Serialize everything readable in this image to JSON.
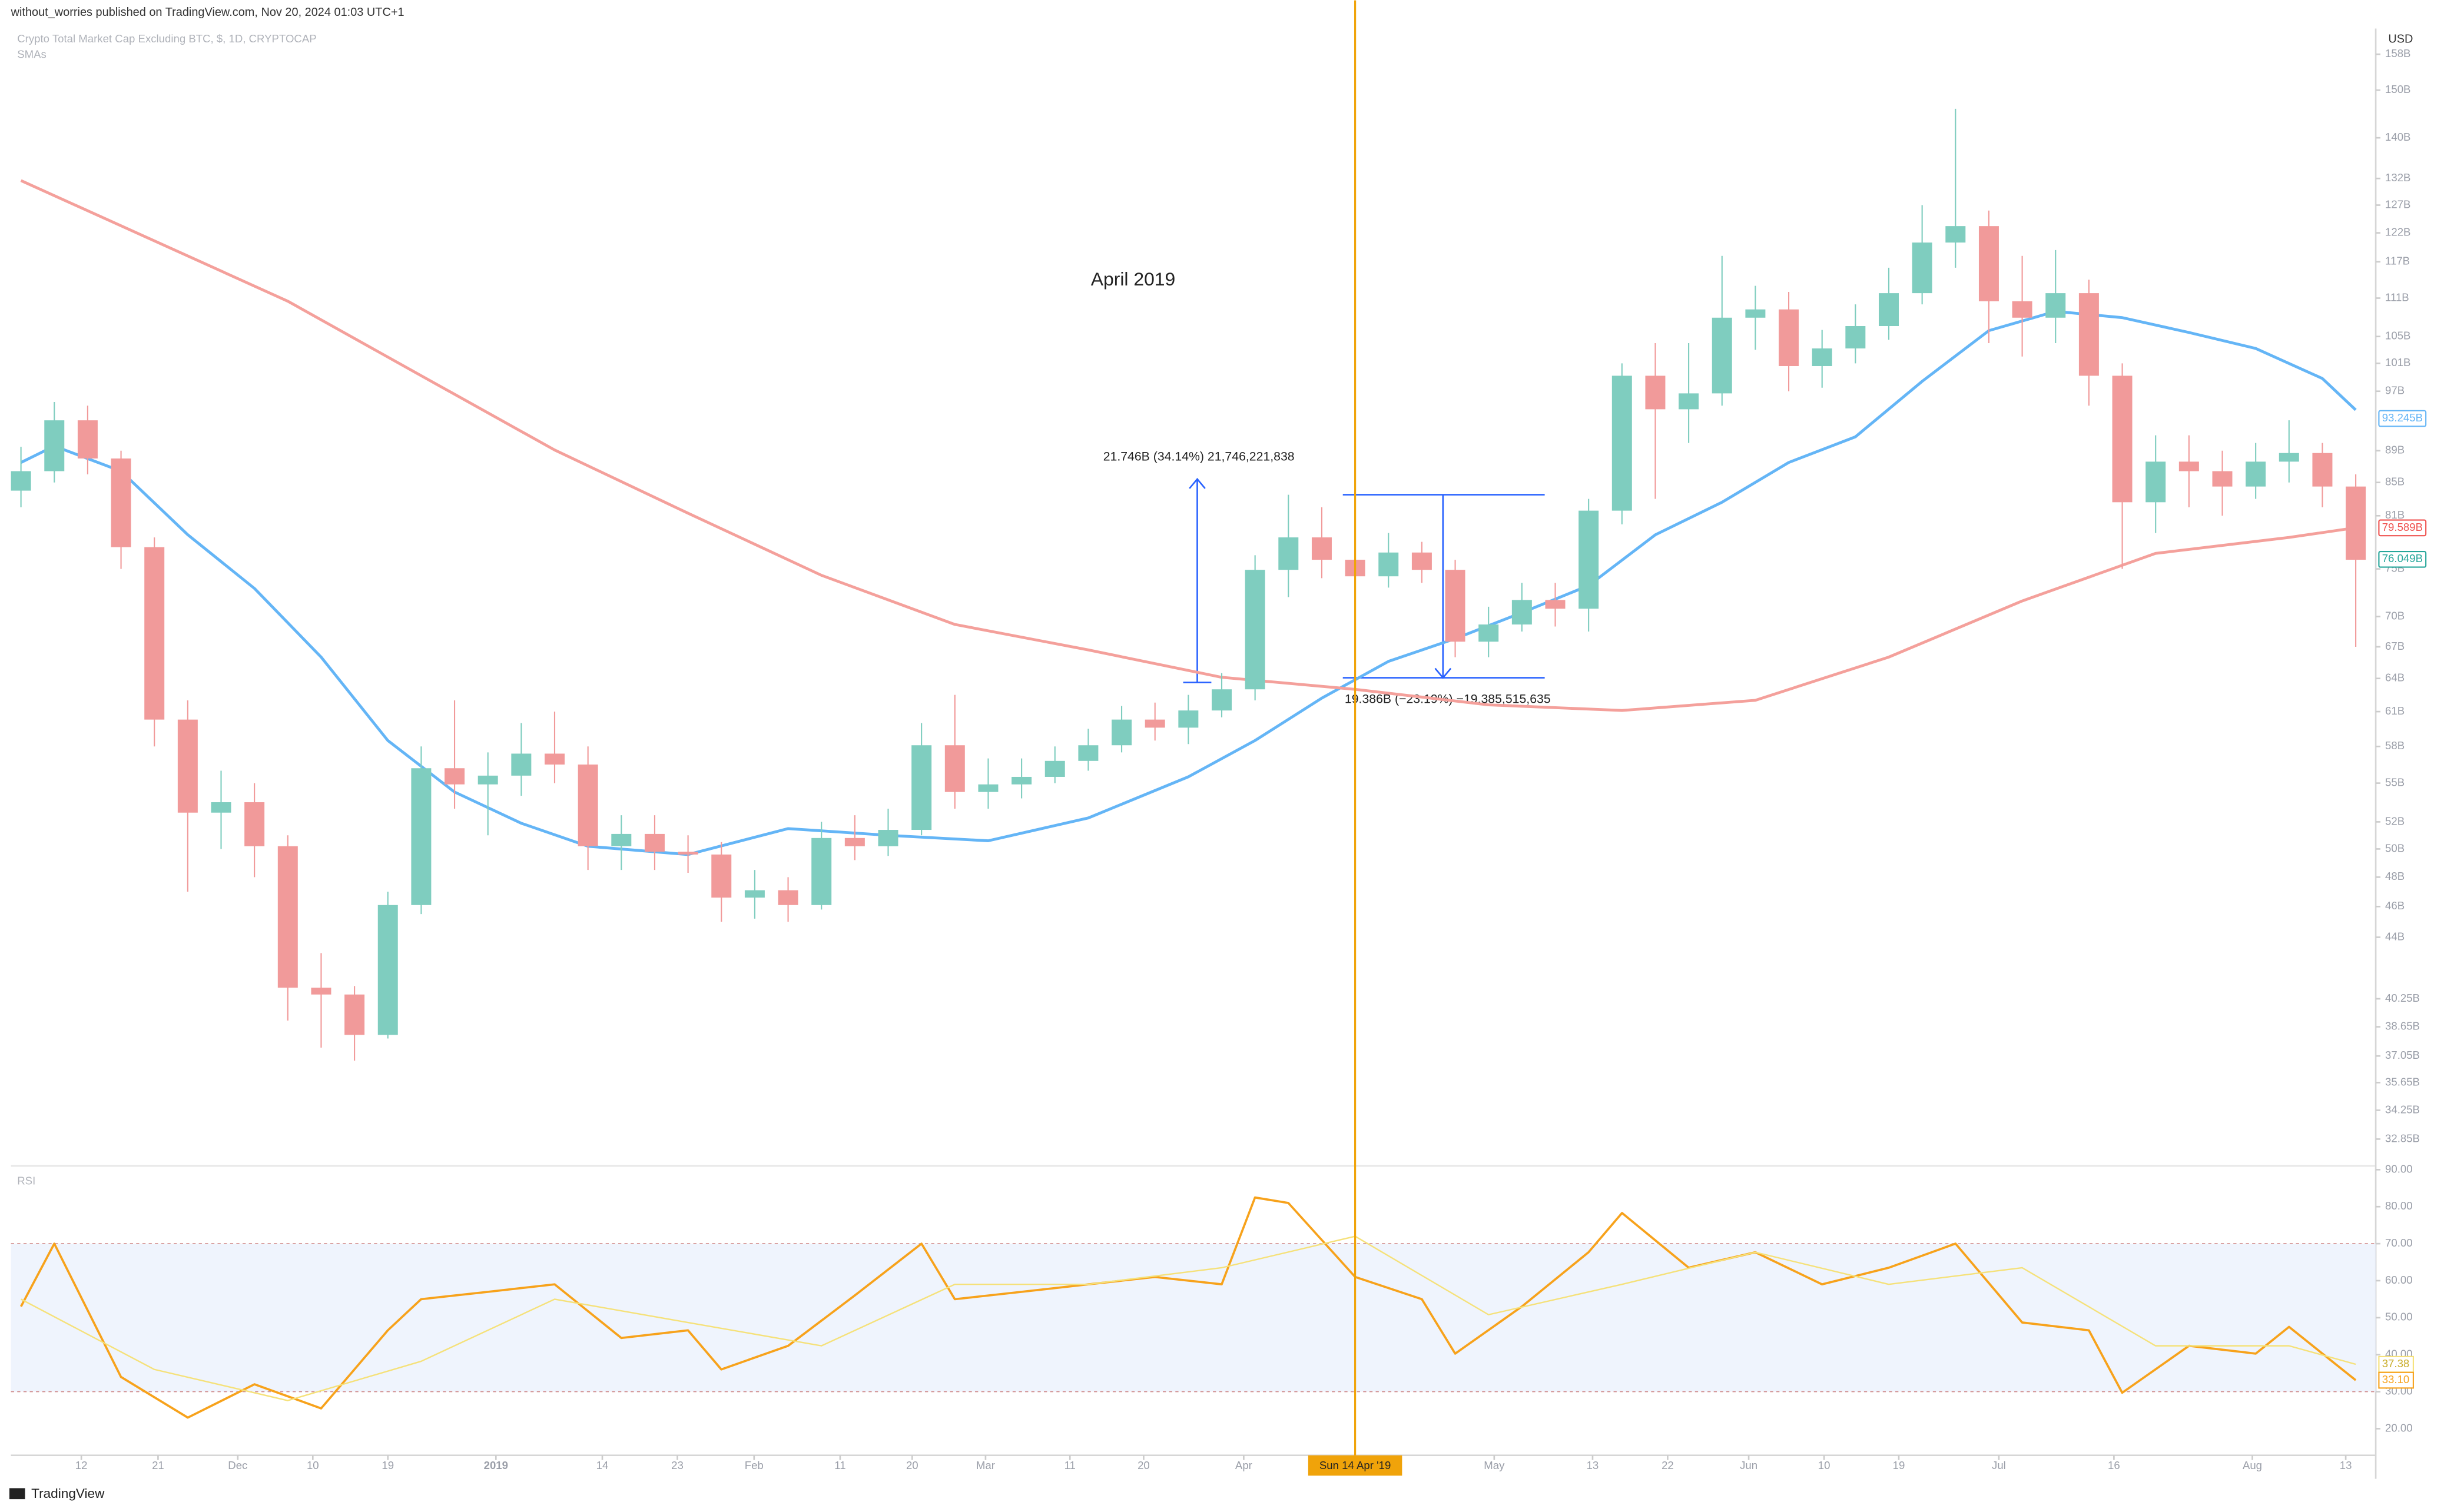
{
  "header": {
    "publisher": "without_worries published on TradingView.com, Nov 20, 2024 01:03 UTC+1",
    "footer": "TradingView"
  },
  "chart_data": [
    {
      "type": "candlestick",
      "title": "Crypto Total Market Cap Excluding BTC, $, 1D, CRYPTOCAP",
      "subtitle": "SMAs",
      "currency": "USD",
      "log_scale": true,
      "up_color": "#7fcdbf",
      "down_color": "#f19a9a",
      "open": [
        84,
        86.4,
        93,
        88,
        77.4,
        60.3,
        52.7,
        53.5,
        50.2,
        40.9,
        40.5,
        38.2,
        46.1,
        56.2,
        54.9,
        55.6,
        57.4,
        56.5,
        50.2,
        51.1,
        49.8,
        49.6,
        46.6,
        47.1,
        46.1,
        50.8,
        50.2,
        51.4,
        58.1,
        54.3,
        54.9,
        55.5,
        56.8,
        58.1,
        60.3,
        59.6,
        61.1,
        63.0,
        74.9,
        78.5,
        76.0,
        74.2,
        76.8,
        74.9,
        67.5,
        69.2,
        71.7,
        70.8,
        81.6,
        99.2,
        94.5,
        96.7,
        107.9,
        109.2,
        100.6,
        103.2,
        106.6,
        111.8,
        120.3,
        123.2,
        110.5,
        107.9,
        111.8,
        99.2,
        82.6,
        87.6,
        86.4,
        84.5,
        87.6,
        88.7,
        84.5
      ],
      "high": [
        89.5,
        95.5,
        95,
        89,
        78.5,
        62,
        56,
        55,
        51,
        43,
        41,
        47,
        58,
        62,
        57.5,
        60,
        61,
        58,
        52.5,
        52.5,
        51,
        50.5,
        48.5,
        48,
        52,
        52.5,
        53,
        60,
        62.5,
        57,
        57,
        58,
        59.5,
        61.5,
        61.8,
        62.5,
        64.5,
        76.5,
        83.5,
        82,
        79,
        79,
        78,
        76,
        71,
        73.5,
        73.5,
        83,
        101,
        104,
        104,
        118,
        113,
        112,
        106,
        110,
        116,
        127,
        146,
        126,
        118,
        119,
        114,
        101,
        91,
        91,
        89,
        90,
        93,
        90,
        86
      ],
      "low": [
        82,
        85,
        86,
        75,
        58,
        47,
        50,
        48,
        39,
        37.5,
        36.8,
        38,
        45.5,
        53,
        51,
        54,
        55,
        48.5,
        48.5,
        48.5,
        48.3,
        45,
        45.2,
        45,
        45.8,
        49.2,
        49.5,
        51,
        53,
        53,
        53.8,
        55,
        56,
        57.5,
        58.5,
        58.2,
        60.5,
        62,
        72,
        74,
        72,
        73,
        73.5,
        66,
        66,
        68.5,
        69,
        68.5,
        80,
        83,
        90,
        95,
        103,
        97,
        97.5,
        101,
        104.5,
        110,
        116,
        104,
        102,
        104,
        95,
        75,
        79,
        82,
        81,
        83,
        85,
        82,
        67
      ],
      "close": [
        86.4,
        93,
        88,
        77.4,
        60.3,
        52.7,
        53.5,
        50.2,
        40.9,
        40.5,
        38.2,
        46.1,
        56.2,
        54.9,
        55.6,
        57.4,
        56.5,
        50.2,
        51.1,
        49.8,
        49.6,
        46.6,
        47.1,
        46.1,
        50.8,
        50.2,
        51.4,
        58.1,
        54.3,
        54.9,
        55.5,
        56.8,
        58.1,
        60.3,
        59.6,
        61.1,
        63.0,
        74.9,
        78.5,
        76.0,
        74.2,
        76.8,
        74.9,
        67.5,
        69.2,
        71.7,
        70.8,
        81.6,
        99.2,
        94.5,
        96.7,
        107.9,
        109.2,
        100.6,
        103.2,
        106.6,
        111.8,
        120.3,
        123.2,
        110.5,
        107.9,
        111.8,
        99.2,
        82.6,
        87.6,
        86.4,
        84.5,
        87.6,
        88.7,
        84.5,
        76.0
      ],
      "series": [
        {
          "color": "#64b5f6",
          "x": [
            0,
            1,
            3,
            5,
            7,
            9,
            11,
            13,
            15,
            17,
            20,
            23,
            26,
            29,
            32,
            35,
            37,
            39,
            41,
            43,
            45,
            47,
            49,
            51,
            53,
            55,
            57,
            59,
            61,
            63,
            65,
            67,
            69,
            70
          ],
          "values": [
            87.5,
            89.6,
            86.4,
            78.8,
            72.9,
            66,
            58.5,
            54.3,
            51.9,
            50.2,
            49.6,
            51.5,
            51.0,
            50.6,
            52.3,
            55.5,
            58.5,
            62.2,
            65.6,
            67.8,
            70.4,
            73.2,
            78.8,
            82.6,
            87.5,
            90.8,
            98.4,
            105.9,
            108.9,
            107.9,
            105.6,
            103.2,
            98.8,
            94.4
          ]
        },
        {
          "color": "#f4a09b",
          "x": [
            0,
            4,
            8,
            12,
            16,
            20,
            24,
            28,
            32,
            36,
            40,
            44,
            48,
            52,
            56,
            60,
            64,
            68,
            70
          ],
          "values": [
            131.6,
            120.6,
            110.5,
            99.2,
            89.1,
            81.3,
            74.3,
            69.2,
            66.7,
            64.1,
            63.0,
            61.6,
            61.1,
            62.0,
            66.0,
            71.6,
            76.7,
            78.5,
            79.6
          ]
        }
      ],
      "price_labels": [
        {
          "value": 93.245,
          "label": "93.245B",
          "color": "#64b5f6"
        },
        {
          "value": 79.589,
          "label": "79.589B",
          "color": "#ef5350"
        },
        {
          "value": 76.049,
          "label": "76.049B",
          "color": "#26a69a"
        }
      ],
      "annotations": [
        "April 2019",
        "21.746B (34.14%) 21,746,221,838",
        "19.386B (−23.19%) −19,385,515,635"
      ],
      "ylim": [
        31.6,
        164
      ],
      "yticks": [
        {
          "value": 158,
          "label": "158B"
        },
        {
          "value": 150,
          "label": "150B"
        },
        {
          "value": 140,
          "label": "140B"
        },
        {
          "value": 132,
          "label": "132B"
        },
        {
          "value": 127,
          "label": "127B"
        },
        {
          "value": 122,
          "label": "122B"
        },
        {
          "value": 117,
          "label": "117B"
        },
        {
          "value": 111,
          "label": "111B"
        },
        {
          "value": 105,
          "label": "105B"
        },
        {
          "value": 101,
          "label": "101B"
        },
        {
          "value": 97,
          "label": "97B"
        },
        {
          "value": 89,
          "label": "89B"
        },
        {
          "value": 85,
          "label": "85B"
        },
        {
          "value": 81,
          "label": "81B"
        },
        {
          "value": 75,
          "label": "75B"
        },
        {
          "value": 70,
          "label": "70B"
        },
        {
          "value": 67,
          "label": "67B"
        },
        {
          "value": 64,
          "label": "64B"
        },
        {
          "value": 61,
          "label": "61B"
        },
        {
          "value": 58,
          "label": "58B"
        },
        {
          "value": 55,
          "label": "55B"
        },
        {
          "value": 52,
          "label": "52B"
        },
        {
          "value": 50,
          "label": "50B"
        },
        {
          "value": 48,
          "label": "48B"
        },
        {
          "value": 46,
          "label": "46B"
        },
        {
          "value": 44,
          "label": "44B"
        },
        {
          "value": 40.25,
          "label": "40.25B"
        },
        {
          "value": 38.65,
          "label": "38.65B"
        },
        {
          "value": 37.05,
          "label": "37.05B"
        },
        {
          "value": 35.65,
          "label": "35.65B"
        },
        {
          "value": 34.25,
          "label": "34.25B"
        },
        {
          "value": 32.85,
          "label": "32.85B"
        }
      ],
      "xlim": [
        -0.3,
        70.6
      ],
      "xticks": [
        {
          "value": 1.81,
          "label": "12"
        },
        {
          "value": 4.11,
          "label": "21"
        },
        {
          "value": 6.5,
          "label": "Dec"
        },
        {
          "value": 8.75,
          "label": "10"
        },
        {
          "value": 11,
          "label": "19"
        },
        {
          "value": 14.24,
          "label": "2019"
        },
        {
          "value": 17.43,
          "label": "14"
        },
        {
          "value": 19.68,
          "label": "23"
        },
        {
          "value": 21.98,
          "label": "Feb"
        },
        {
          "value": 24.56,
          "label": "11"
        },
        {
          "value": 26.72,
          "label": "20"
        },
        {
          "value": 28.92,
          "label": "Mar"
        },
        {
          "value": 31.45,
          "label": "11"
        },
        {
          "value": 33.66,
          "label": "20"
        },
        {
          "value": 36.66,
          "label": "Apr"
        },
        {
          "value": 44.17,
          "label": "May"
        },
        {
          "value": 47.12,
          "label": "13"
        },
        {
          "value": 49.37,
          "label": "22"
        },
        {
          "value": 51.8,
          "label": "Jun"
        },
        {
          "value": 54.06,
          "label": "10"
        },
        {
          "value": 56.3,
          "label": "19"
        },
        {
          "value": 59.3,
          "label": "Jul"
        },
        {
          "value": 62.75,
          "label": "16"
        },
        {
          "value": 66.9,
          "label": "Aug"
        },
        {
          "value": 69.7,
          "label": "13"
        }
      ],
      "crosshair": {
        "value": 40,
        "label": "Sun 14 Apr '19",
        "color": "#f0a30a"
      }
    },
    {
      "type": "line",
      "title": "RSI",
      "series": [
        {
          "color": "#f7a21b",
          "x": [
            0,
            1,
            3,
            5,
            7,
            9,
            11,
            12,
            14,
            16,
            18,
            20,
            21,
            23,
            25,
            27,
            28,
            30,
            32,
            34,
            36,
            37,
            38,
            40,
            42,
            43,
            45,
            47,
            48,
            50,
            52,
            54,
            56,
            58,
            60,
            62,
            63,
            65,
            67,
            68,
            70
          ],
          "values": [
            53,
            70,
            34,
            23,
            32,
            25.5,
            46.6,
            55,
            57,
            59,
            44.5,
            46.6,
            36,
            42.4,
            56,
            70,
            55,
            57,
            59,
            61,
            59,
            82.5,
            81,
            61,
            55,
            40.3,
            53,
            67.7,
            78.3,
            63.5,
            67.7,
            59,
            63.5,
            70,
            48.7,
            46.6,
            29.7,
            42.4,
            40.3,
            47.5,
            33.1
          ]
        },
        {
          "color": "#f5e17a",
          "x": [
            0,
            4,
            8,
            12,
            16,
            20,
            24,
            28,
            32,
            36,
            40,
            44,
            48,
            52,
            56,
            60,
            64,
            68,
            70
          ],
          "values": [
            55,
            36,
            27.6,
            38.2,
            55,
            48.7,
            42.4,
            59,
            59,
            63.5,
            72,
            50.8,
            59,
            67.7,
            59,
            63.5,
            42.4,
            42.4,
            37.4
          ]
        }
      ],
      "value_labels": [
        {
          "value": 37.38,
          "label": "37.38",
          "color": "#f5e17a"
        },
        {
          "value": 33.1,
          "label": "33.10",
          "color": "#f7a21b"
        }
      ],
      "bands": [
        30,
        70
      ],
      "ylim": [
        12.8,
        90.6
      ],
      "yticks": [
        {
          "value": 90,
          "label": "90.00"
        },
        {
          "value": 80,
          "label": "80.00"
        },
        {
          "value": 70,
          "label": "70.00"
        },
        {
          "value": 60,
          "label": "60.00"
        },
        {
          "value": 50,
          "label": "50.00"
        },
        {
          "value": 40,
          "label": "40.00"
        },
        {
          "value": 30,
          "label": "30.00"
        },
        {
          "value": 20,
          "label": "20.00"
        }
      ]
    }
  ]
}
